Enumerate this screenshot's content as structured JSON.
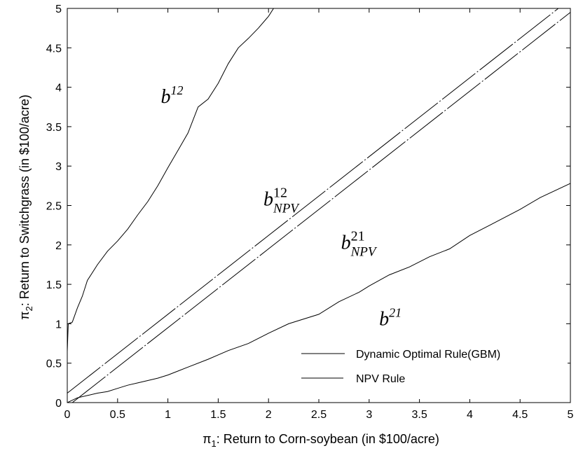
{
  "chart_data": {
    "type": "line",
    "xlabel_symbol": "π",
    "xlabel_sub": "1",
    "xlabel_text": ": Return to Corn-soybean (in $100/acre)",
    "ylabel_symbol": "π",
    "ylabel_sub": "2",
    "ylabel_text": ": Return to Switchgrass (in $100/acre)",
    "xlim": [
      0,
      5
    ],
    "ylim": [
      0,
      5
    ],
    "xticks": [
      "0",
      "0.5",
      "1",
      "1.5",
      "2",
      "2.5",
      "3",
      "3.5",
      "4",
      "4.5",
      "5"
    ],
    "yticks": [
      "0",
      "0.5",
      "1",
      "1.5",
      "2",
      "2.5",
      "3",
      "3.5",
      "4",
      "4.5",
      "5"
    ],
    "grid": false,
    "legend_position": "bottom-right",
    "legend": [
      {
        "label": "Dynamic Optimal Rule(GBM)",
        "style": "solid"
      },
      {
        "label": "NPV Rule",
        "style": "dashed"
      }
    ],
    "annotations": [
      {
        "base": "b",
        "sup": "12",
        "sub": "",
        "x": 0.93,
        "y": 3.8
      },
      {
        "base": "b",
        "sup": "12",
        "sub": "NPV",
        "x": 1.95,
        "y": 2.5
      },
      {
        "base": "b",
        "sup": "21",
        "sub": "NPV",
        "x": 2.72,
        "y": 1.95
      },
      {
        "base": "b",
        "sup": "21",
        "sub": "",
        "x": 3.1,
        "y": 0.98
      }
    ],
    "series": [
      {
        "label": "b12",
        "style": "solid",
        "x": [
          0,
          0.01,
          0.05,
          0.1,
          0.15,
          0.2,
          0.3,
          0.4,
          0.5,
          0.6,
          0.7,
          0.8,
          0.9,
          1.0,
          1.1,
          1.2,
          1.3,
          1.4,
          1.5,
          1.6,
          1.7,
          1.8,
          1.9,
          2.0,
          2.05
        ],
        "y": [
          0.65,
          1.0,
          1.02,
          1.2,
          1.35,
          1.55,
          1.75,
          1.92,
          2.05,
          2.2,
          2.38,
          2.55,
          2.75,
          2.98,
          3.2,
          3.42,
          3.75,
          3.85,
          4.05,
          4.3,
          4.5,
          4.62,
          4.75,
          4.9,
          5.0
        ]
      },
      {
        "label": "b21",
        "style": "solid",
        "x": [
          0,
          0.05,
          0.1,
          0.2,
          0.3,
          0.4,
          0.5,
          0.6,
          0.7,
          0.8,
          0.9,
          1.0,
          1.2,
          1.4,
          1.6,
          1.8,
          2.0,
          2.2,
          2.5,
          2.7,
          2.9,
          3.0,
          3.2,
          3.4,
          3.6,
          3.8,
          4.0,
          4.2,
          4.5,
          4.7,
          5.0
        ],
        "y": [
          0,
          0.03,
          0.06,
          0.09,
          0.12,
          0.14,
          0.18,
          0.22,
          0.25,
          0.28,
          0.31,
          0.35,
          0.45,
          0.55,
          0.66,
          0.75,
          0.88,
          1.0,
          1.12,
          1.28,
          1.4,
          1.48,
          1.62,
          1.72,
          1.85,
          1.95,
          2.12,
          2.25,
          2.45,
          2.6,
          2.78
        ]
      },
      {
        "label": "b12_NPV",
        "style": "dashed",
        "x": [
          0,
          5
        ],
        "y": [
          0.12,
          5.12
        ]
      },
      {
        "label": "b21_NPV",
        "style": "dashed",
        "x": [
          0.05,
          5
        ],
        "y": [
          0,
          4.95
        ]
      }
    ]
  }
}
